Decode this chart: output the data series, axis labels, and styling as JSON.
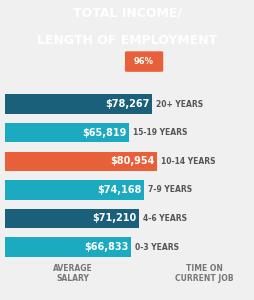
{
  "title_line1": "TOTAL INCOME/",
  "title_line2": "LENGTH OF EMPLOYMENT",
  "subtitle": "96%",
  "col_label_left": "AVERAGE\nSALARY",
  "col_label_right": "TIME ON\nCURRENT JOB",
  "categories": [
    "20+ YEARS",
    "15-19 YEARS",
    "10-14 YEARS",
    "7-9 YEARS",
    "4-6 YEARS",
    "0-3 YEARS"
  ],
  "values": [
    78267,
    65819,
    80954,
    74168,
    71210,
    66833
  ],
  "labels": [
    "$78,267",
    "$65,819",
    "$80,954",
    "$74,168",
    "$71,210",
    "$66,833"
  ],
  "bar_colors": [
    "#1a607a",
    "#1baabf",
    "#e8603a",
    "#1baabf",
    "#1a607a",
    "#1baabf"
  ],
  "background_color": "#f0f0f0",
  "title_bg_color": "#1a1a1a",
  "max_value": 95000,
  "bar_height": 0.68,
  "title_color": "#ffffff",
  "subtitle_bg_color": "#e8603a",
  "subtitle_text_color": "#ffffff",
  "label_color": "#ffffff",
  "category_color": "#555555",
  "header_color": "#777777",
  "header_fontsize": 5.5,
  "bar_label_fontsize": 7.0,
  "category_fontsize": 5.5,
  "title_fontsize": 9.0
}
